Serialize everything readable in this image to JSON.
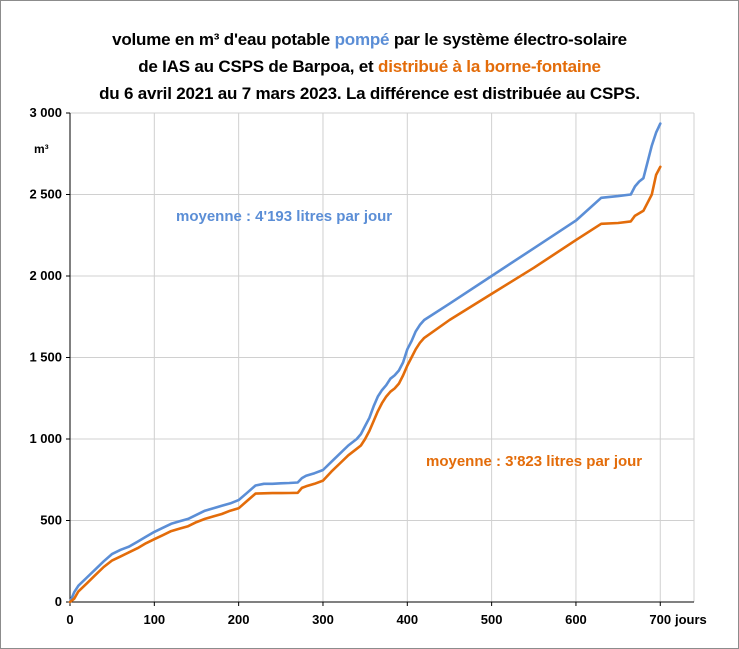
{
  "colors": {
    "pumped": "#5b8ed6",
    "distributed": "#e36c0a",
    "grid": "#d0d0d0",
    "axis": "#000000"
  },
  "title": {
    "line1_a": "volume en m³ d'eau potable ",
    "line1_b": "pompé",
    "line1_c": " par le système électro-solaire",
    "line2_a": "de IAS  au CSPS de Barpoa, et ",
    "line2_b": "distribué à la borne-fontaine",
    "line3": "du 6 avril 2021 au 7 mars 2023. La différence est distribuée au CSPS."
  },
  "chart_data": {
    "type": "line",
    "title": "volume en m³ d'eau potable pompé par le système électro-solaire de IAS  au CSPS de Barpoa, et distribué à la borne-fontaine du 6 avril 2021 au 7 mars 2023. La différence est distribuée au CSPS.",
    "xlabel": "jours",
    "ylabel": "m³",
    "xlim": [
      0,
      740
    ],
    "ylim": [
      0,
      3000
    ],
    "x_ticks": [
      0,
      100,
      200,
      300,
      400,
      500,
      600,
      700
    ],
    "x_tick_labels": [
      "0",
      "100",
      "200",
      "300",
      "400",
      "500",
      "600",
      "700"
    ],
    "y_ticks": [
      0,
      500,
      1000,
      1500,
      2000,
      2500,
      3000
    ],
    "y_tick_labels": [
      "0",
      "500",
      "1 000",
      "1 500",
      "2 000",
      "2 500",
      "3 000"
    ],
    "grid": true,
    "legend": "none",
    "annotations": [
      {
        "text": "moyenne : 4'193 litres  par jour",
        "series": 0
      },
      {
        "text": "moyenne : 3'823 litres  par jour",
        "series": 1
      }
    ],
    "series": [
      {
        "color": "#5b8ed6",
        "points": [
          [
            0,
            0
          ],
          [
            5,
            60
          ],
          [
            10,
            100
          ],
          [
            20,
            150
          ],
          [
            30,
            200
          ],
          [
            40,
            250
          ],
          [
            50,
            295
          ],
          [
            60,
            320
          ],
          [
            70,
            340
          ],
          [
            80,
            370
          ],
          [
            90,
            400
          ],
          [
            100,
            430
          ],
          [
            110,
            455
          ],
          [
            120,
            480
          ],
          [
            130,
            495
          ],
          [
            140,
            510
          ],
          [
            150,
            535
          ],
          [
            160,
            560
          ],
          [
            170,
            575
          ],
          [
            180,
            590
          ],
          [
            190,
            605
          ],
          [
            200,
            625
          ],
          [
            210,
            670
          ],
          [
            220,
            715
          ],
          [
            230,
            725
          ],
          [
            240,
            725
          ],
          [
            250,
            728
          ],
          [
            260,
            730
          ],
          [
            270,
            733
          ],
          [
            275,
            760
          ],
          [
            280,
            775
          ],
          [
            290,
            790
          ],
          [
            300,
            810
          ],
          [
            310,
            860
          ],
          [
            320,
            910
          ],
          [
            330,
            960
          ],
          [
            340,
            1000
          ],
          [
            345,
            1030
          ],
          [
            350,
            1080
          ],
          [
            355,
            1130
          ],
          [
            360,
            1200
          ],
          [
            365,
            1260
          ],
          [
            370,
            1300
          ],
          [
            375,
            1330
          ],
          [
            380,
            1370
          ],
          [
            385,
            1390
          ],
          [
            390,
            1420
          ],
          [
            395,
            1470
          ],
          [
            400,
            1550
          ],
          [
            405,
            1600
          ],
          [
            410,
            1660
          ],
          [
            415,
            1700
          ],
          [
            420,
            1730
          ],
          [
            450,
            1830
          ],
          [
            500,
            2000
          ],
          [
            550,
            2170
          ],
          [
            600,
            2340
          ],
          [
            630,
            2480
          ],
          [
            650,
            2490
          ],
          [
            665,
            2500
          ],
          [
            670,
            2550
          ],
          [
            675,
            2580
          ],
          [
            680,
            2600
          ],
          [
            685,
            2700
          ],
          [
            690,
            2800
          ],
          [
            695,
            2880
          ],
          [
            700,
            2935
          ]
        ]
      },
      {
        "color": "#e36c0a",
        "points": [
          [
            0,
            0
          ],
          [
            5,
            20
          ],
          [
            10,
            65
          ],
          [
            20,
            115
          ],
          [
            30,
            165
          ],
          [
            40,
            215
          ],
          [
            50,
            255
          ],
          [
            60,
            280
          ],
          [
            70,
            305
          ],
          [
            80,
            330
          ],
          [
            90,
            360
          ],
          [
            100,
            385
          ],
          [
            110,
            410
          ],
          [
            120,
            435
          ],
          [
            130,
            450
          ],
          [
            140,
            465
          ],
          [
            150,
            490
          ],
          [
            160,
            510
          ],
          [
            170,
            525
          ],
          [
            180,
            540
          ],
          [
            190,
            560
          ],
          [
            200,
            575
          ],
          [
            210,
            620
          ],
          [
            220,
            665
          ],
          [
            230,
            667
          ],
          [
            240,
            668
          ],
          [
            250,
            668
          ],
          [
            260,
            669
          ],
          [
            270,
            670
          ],
          [
            275,
            700
          ],
          [
            280,
            710
          ],
          [
            290,
            725
          ],
          [
            300,
            745
          ],
          [
            310,
            800
          ],
          [
            320,
            850
          ],
          [
            330,
            900
          ],
          [
            340,
            940
          ],
          [
            345,
            960
          ],
          [
            350,
            1000
          ],
          [
            355,
            1050
          ],
          [
            360,
            1110
          ],
          [
            365,
            1170
          ],
          [
            370,
            1220
          ],
          [
            375,
            1260
          ],
          [
            380,
            1290
          ],
          [
            385,
            1310
          ],
          [
            390,
            1340
          ],
          [
            395,
            1390
          ],
          [
            400,
            1450
          ],
          [
            405,
            1500
          ],
          [
            410,
            1550
          ],
          [
            415,
            1590
          ],
          [
            420,
            1620
          ],
          [
            450,
            1730
          ],
          [
            500,
            1890
          ],
          [
            550,
            2050
          ],
          [
            600,
            2220
          ],
          [
            630,
            2320
          ],
          [
            650,
            2325
          ],
          [
            665,
            2335
          ],
          [
            670,
            2370
          ],
          [
            680,
            2400
          ],
          [
            685,
            2450
          ],
          [
            690,
            2500
          ],
          [
            695,
            2620
          ],
          [
            700,
            2670
          ]
        ]
      }
    ]
  }
}
